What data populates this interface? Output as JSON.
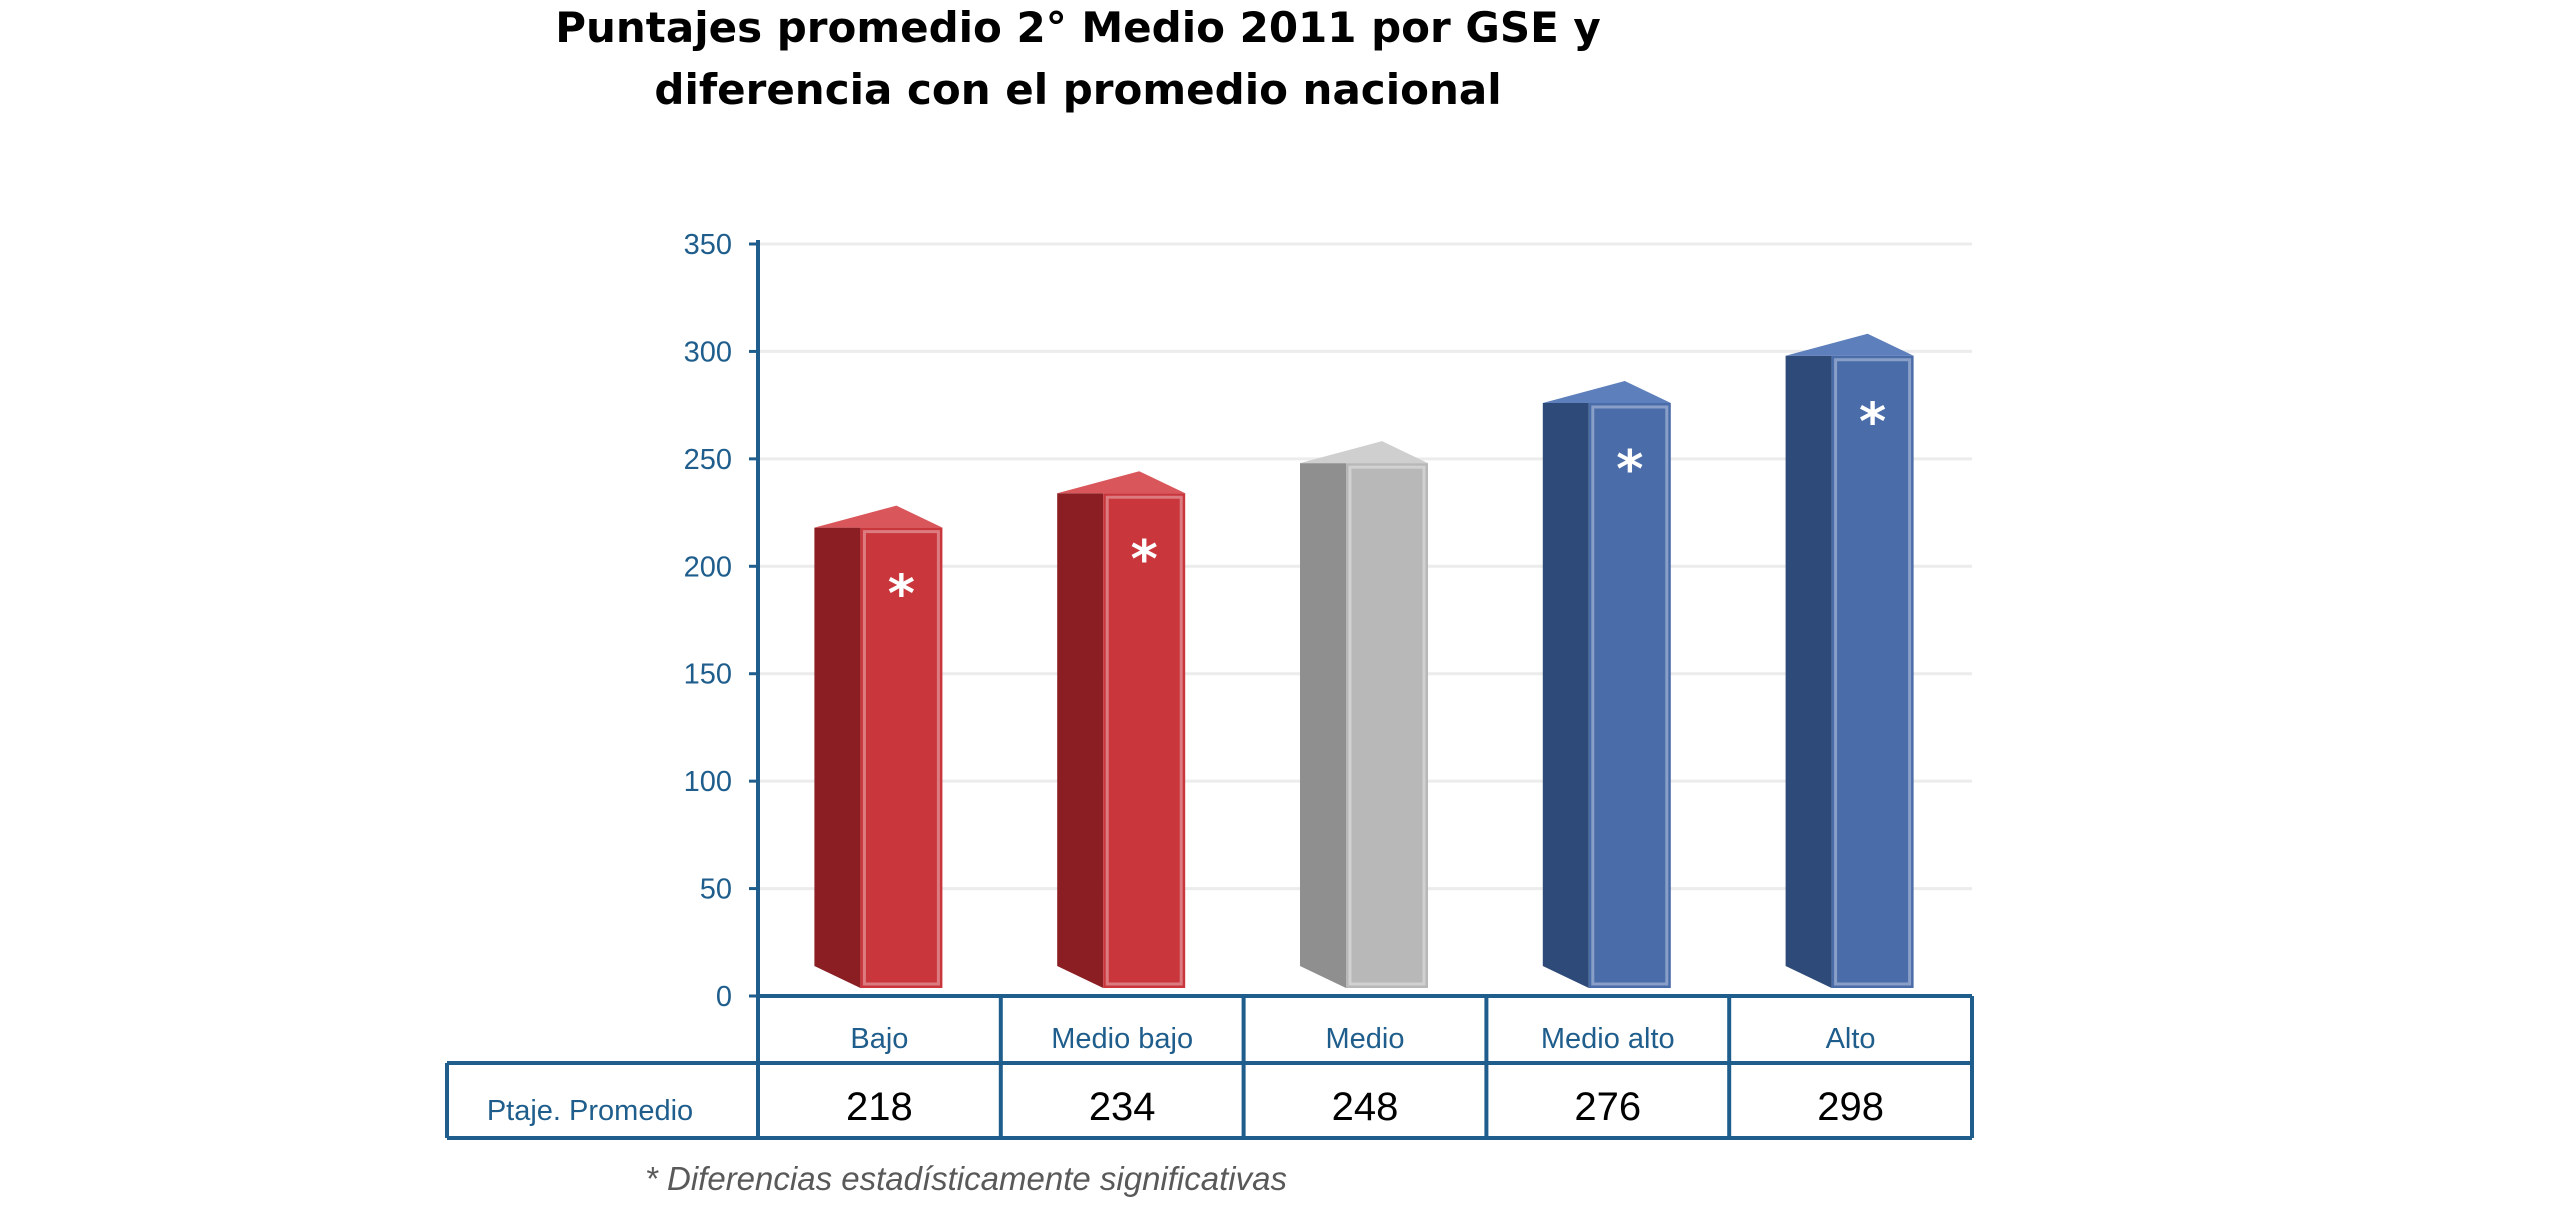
{
  "chart_data": {
    "type": "bar",
    "title_lines": [
      "Puntajes promedio 2° Medio 2011 por GSE y",
      "diferencia con el promedio nacional"
    ],
    "categories": [
      "Bajo",
      "Medio bajo",
      "Medio",
      "Medio alto",
      "Alto"
    ],
    "values": [
      218,
      234,
      248,
      276,
      298
    ],
    "significant": [
      true,
      true,
      false,
      true,
      true
    ],
    "significance_mark": "*",
    "ylim": [
      0,
      350
    ],
    "yticks": [
      0,
      50,
      100,
      150,
      200,
      250,
      300,
      350
    ],
    "grid": true,
    "table_row_label": "Ptaje. Promedio",
    "footnote": "* Diferencias estadísticamente significativas",
    "colors": {
      "below_front": "#c9363c",
      "below_side": "#8b1e23",
      "below_top": "#d9565b",
      "middle_front": "#b8b8b8",
      "middle_side": "#8f8f8f",
      "middle_top": "#cfcfcf",
      "above_front": "#4a6ca9",
      "above_side": "#2d4a78",
      "above_top": "#5d7fbb",
      "axis": "#1f5e8c",
      "grid": "#ececec"
    }
  }
}
